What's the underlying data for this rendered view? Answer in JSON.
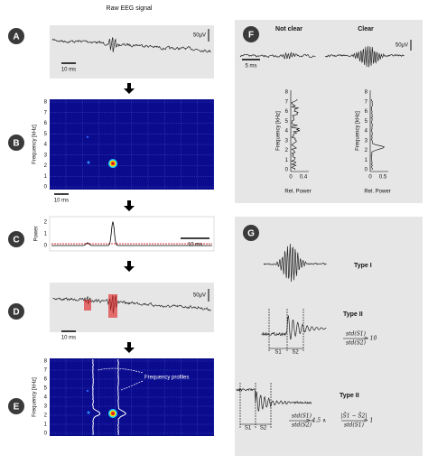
{
  "title": "Raw EEG signal",
  "panels": {
    "A": {
      "label": "A",
      "scale_v": "50μV",
      "scale_t": "10 ms"
    },
    "B": {
      "label": "B",
      "y_label": "Frequency [kHz]",
      "yticks": [
        0,
        1,
        2,
        3,
        4,
        5,
        6,
        7,
        8
      ],
      "scale_t": "10 ms"
    },
    "C": {
      "label": "C",
      "y_label": "Power",
      "yticks": [
        0,
        1,
        2
      ],
      "scale_t": "10 ms"
    },
    "D": {
      "label": "D",
      "scale_v": "50μV",
      "scale_t": "10 ms"
    },
    "E": {
      "label": "E",
      "y_label": "Frequency [kHz]",
      "yticks": [
        0,
        1,
        2,
        3,
        4,
        5,
        6,
        7,
        8
      ],
      "annotation": "Frequency profiles"
    },
    "F": {
      "label": "F",
      "scale_v": "50μV",
      "scale_t": "5 ms",
      "plots": [
        {
          "title": "Not clear",
          "y_label": "Frequency [kHz]",
          "x_label": "Rel. Power",
          "xticks": [
            0,
            0.4
          ],
          "yticks": [
            0,
            1,
            2,
            3,
            4,
            5,
            6,
            7,
            8
          ]
        },
        {
          "title": "Clear",
          "y_label": "Frequency [kHz]",
          "x_label": "Rel. Power",
          "xticks": [
            0,
            0.5
          ],
          "yticks": [
            0,
            1,
            2,
            3,
            4,
            5,
            6,
            7,
            8
          ]
        }
      ]
    },
    "G": {
      "label": "G",
      "types": [
        {
          "name": "Type I"
        },
        {
          "name": "Type II",
          "segments": [
            "S1",
            "S2"
          ],
          "formula": [
            {
              "num": "std(S1)",
              "den": "std(S2)"
            },
            {
              "text": "> 10"
            }
          ]
        },
        {
          "name": "Type II",
          "segments": [
            "S1",
            "S2"
          ],
          "formula": [
            {
              "num": "std(S1)",
              "den": "std(S2)"
            },
            {
              "text": "> 4.5 ∧"
            },
            {
              "num": "|S̄1 − S̄2|",
              "den": "std(S1)"
            },
            {
              "text": "> 1"
            }
          ]
        }
      ]
    }
  }
}
